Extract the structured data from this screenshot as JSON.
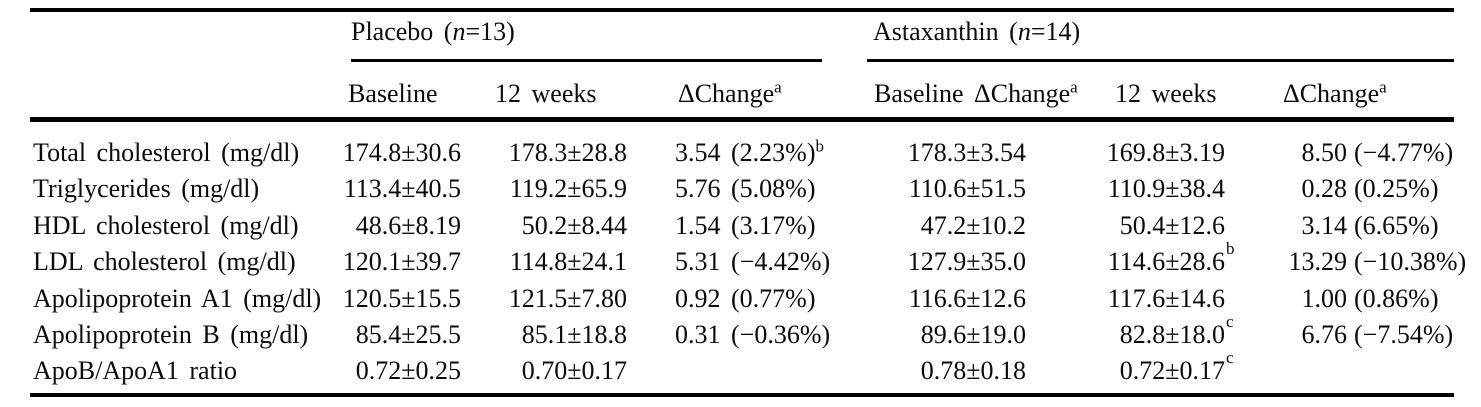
{
  "table": {
    "groups": [
      {
        "pre": "Placebo (",
        "n": "n",
        "post": "=13)"
      },
      {
        "pre": "Astaxanthin (",
        "n": "n",
        "post": "=14)"
      }
    ],
    "col_headers": [
      {
        "label": "Baseline",
        "sup": ""
      },
      {
        "label": "12 weeks",
        "sup": ""
      },
      {
        "label": "ΔChange",
        "sup": "a"
      },
      {
        "label": "Baseline ΔChange",
        "sup": "a"
      },
      {
        "label": "12 weeks",
        "sup": ""
      },
      {
        "label": "ΔChange",
        "sup": "a"
      }
    ],
    "rows": [
      {
        "label": "Total cholesterol (mg/dl)",
        "placebo_baseline": "174.8±30.6",
        "placebo_12w": "178.3±28.8",
        "placebo_change": "3.54 (2.23%)",
        "placebo_change_sup": "b",
        "asta_baseline": "178.3±3.54",
        "asta_12w": "169.8±3.19",
        "asta_12w_sup": "",
        "asta_change_num": "8.50",
        "asta_change_pct": "(−4.77%)"
      },
      {
        "label": "Triglycerides (mg/dl)",
        "placebo_baseline": "113.4±40.5",
        "placebo_12w": "119.2±65.9",
        "placebo_change": "5.76 (5.08%)",
        "placebo_change_sup": "",
        "asta_baseline": "110.6±51.5",
        "asta_12w": "110.9±38.4",
        "asta_12w_sup": "",
        "asta_change_num": "0.28",
        "asta_change_pct": "(0.25%)"
      },
      {
        "label": "HDL cholesterol (mg/dl)",
        "placebo_baseline": "48.6±8.19",
        "placebo_12w": "50.2±8.44",
        "placebo_change": "1.54 (3.17%)",
        "placebo_change_sup": "",
        "asta_baseline": "47.2±10.2",
        "asta_12w": "50.4±12.6",
        "asta_12w_sup": "",
        "asta_change_num": "3.14",
        "asta_change_pct": "(6.65%)"
      },
      {
        "label": "LDL cholesterol (mg/dl)",
        "placebo_baseline": "120.1±39.7",
        "placebo_12w": "114.8±24.1",
        "placebo_change": "5.31 (−4.42%)",
        "placebo_change_sup": "",
        "asta_baseline": "127.9±35.0",
        "asta_12w": "114.6±28.6",
        "asta_12w_sup": "b",
        "asta_change_num": "13.29",
        "asta_change_pct": "(−10.38%)"
      },
      {
        "label": "Apolipoprotein A1 (mg/dl)",
        "placebo_baseline": "120.5±15.5",
        "placebo_12w": "121.5±7.80",
        "placebo_change": "0.92 (0.77%)",
        "placebo_change_sup": "",
        "asta_baseline": "116.6±12.6",
        "asta_12w": "117.6±14.6",
        "asta_12w_sup": "",
        "asta_change_num": "1.00",
        "asta_change_pct": "(0.86%)"
      },
      {
        "label": "Apolipoprotein B (mg/dl)",
        "placebo_baseline": "85.4±25.5",
        "placebo_12w": "85.1±18.8",
        "placebo_change": "0.31 (−0.36%)",
        "placebo_change_sup": "",
        "asta_baseline": "89.6±19.0",
        "asta_12w": "82.8±18.0",
        "asta_12w_sup": "c",
        "asta_change_num": "6.76",
        "asta_change_pct": "(−7.54%)"
      },
      {
        "label": "ApoB/ApoA1 ratio",
        "placebo_baseline": "0.72±0.25",
        "placebo_12w": "0.70±0.17",
        "placebo_change": "",
        "placebo_change_sup": "",
        "asta_baseline": "0.78±0.18",
        "asta_12w": "0.72±0.17",
        "asta_12w_sup": "c",
        "asta_change_num": "",
        "asta_change_pct": ""
      }
    ]
  }
}
